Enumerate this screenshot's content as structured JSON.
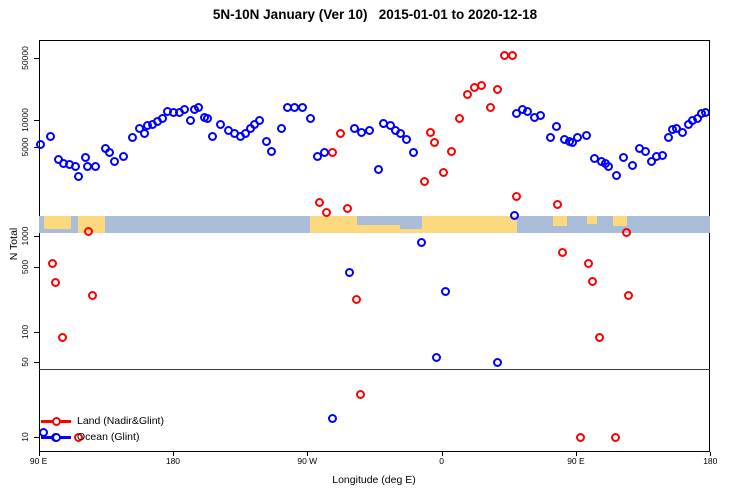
{
  "title": "5N-10N January (Ver 10)   2015-01-01 to 2020-12-18",
  "chart_data": {
    "type": "scatter",
    "title": "5N-10N January (Ver 10)   2015-01-01 to 2020-12-18",
    "xlabel": "Longitude (deg E)",
    "ylabel": "N Total",
    "x_axis": {
      "note_units": "degrees east, axis wraps 90E→180→90W→0→90E→180",
      "range_deg": [
        90,
        540
      ],
      "ticks": [
        {
          "deg": 90,
          "label": "90 E"
        },
        {
          "deg": 180,
          "label": "180"
        },
        {
          "deg": 270,
          "label": "90 W"
        },
        {
          "deg": 360,
          "label": "0"
        },
        {
          "deg": 450,
          "label": "90 E"
        },
        {
          "deg": 540,
          "label": "180"
        }
      ]
    },
    "y_axis": {
      "scale": "log",
      "ticks": [
        10,
        50,
        100,
        500,
        1000,
        5000,
        10000,
        50000
      ],
      "range": [
        10,
        55000
      ]
    },
    "grid": "off",
    "threshold_line_value": 43,
    "map_band": {
      "description": "map strip of 5N-10N latitude band drawn across plot",
      "ocean_color": "#aabdd8",
      "land_color": "#fcd87f",
      "value_top": 1440,
      "value_bottom": 1060,
      "land_patches": [
        {
          "from_deg": 93.6,
          "to_deg": 111.7,
          "align": "top",
          "frac": 0.8
        },
        {
          "from_deg": 116.4,
          "to_deg": 134.5,
          "align": "full",
          "frac": 1
        },
        {
          "from_deg": 271.7,
          "to_deg": 303.2,
          "align": "full",
          "frac": 1
        },
        {
          "from_deg": 303.2,
          "to_deg": 332.0,
          "align": "bottom",
          "frac": 0.45
        },
        {
          "from_deg": 332.0,
          "to_deg": 346.7,
          "align": "bottom",
          "frac": 0.25
        },
        {
          "from_deg": 346.7,
          "to_deg": 410.3,
          "align": "full",
          "frac": 1
        },
        {
          "from_deg": 434.4,
          "to_deg": 443.8,
          "align": "top",
          "frac": 0.6
        },
        {
          "from_deg": 457.2,
          "to_deg": 463.9,
          "align": "top",
          "frac": 0.5
        },
        {
          "from_deg": 474.6,
          "to_deg": 484.0,
          "align": "top",
          "frac": 0.6
        }
      ]
    },
    "legend": {
      "position": "bottom-left",
      "items": [
        {
          "label": "Land (Nadir&Glint)",
          "color": "#ff0000"
        },
        {
          "label": "Ocean (Glint)",
          "color": "#0000ff"
        }
      ]
    },
    "series": [
      {
        "name": "Land (Nadir&Glint)",
        "color": "#ff0000",
        "marker": "open-circle",
        "points": [
          [
            99,
            540
          ],
          [
            101.6,
            340
          ],
          [
            105.7,
            88
          ],
          [
            116.4,
            10
          ],
          [
            123.1,
            1080
          ],
          [
            125.8,
            245
          ],
          [
            278.4,
            1840
          ],
          [
            283.1,
            1535
          ],
          [
            287.1,
            4490
          ],
          [
            292.4,
            7000
          ],
          [
            297.1,
            1650
          ],
          [
            303.2,
            225
          ],
          [
            305.8,
            25
          ],
          [
            348.7,
            2670
          ],
          [
            352.7,
            7200
          ],
          [
            355.4,
            5550
          ],
          [
            361.4,
            3140
          ],
          [
            366.8,
            4570
          ],
          [
            372.1,
            10500
          ],
          [
            377.5,
            19600
          ],
          [
            382.2,
            23500
          ],
          [
            386.9,
            24800
          ],
          [
            392.9,
            13700
          ],
          [
            397.6,
            21800
          ],
          [
            402.3,
            53000
          ],
          [
            407.6,
            54000
          ],
          [
            410.3,
            2040
          ],
          [
            437.8,
            1770
          ],
          [
            441.1,
            690
          ],
          [
            453.1,
            10
          ],
          [
            458.5,
            540
          ],
          [
            461.2,
            345
          ],
          [
            465.9,
            88
          ],
          [
            476.6,
            10
          ],
          [
            484,
            1070
          ],
          [
            485.3,
            245
          ]
        ]
      },
      {
        "name": "Ocean (Glint)",
        "color": "#0000ff",
        "marker": "open-circle",
        "points": [
          [
            91.6,
            5300
          ],
          [
            98.3,
            6600
          ],
          [
            103,
            3960
          ],
          [
            107,
            3690
          ],
          [
            111,
            3630
          ],
          [
            115,
            3500
          ],
          [
            116.4,
            2920
          ],
          [
            121.7,
            4110
          ],
          [
            123,
            3500
          ],
          [
            127.8,
            3500
          ],
          [
            135.1,
            4900
          ],
          [
            137.8,
            4490
          ],
          [
            141.1,
            3820
          ],
          [
            147.2,
            4180
          ],
          [
            153.2,
            6300
          ],
          [
            157.9,
            8100
          ],
          [
            161.2,
            7000
          ],
          [
            163.2,
            8600
          ],
          [
            166.6,
            8800
          ],
          [
            169.9,
            9500
          ],
          [
            173.3,
            10500
          ],
          [
            176.6,
            12600
          ],
          [
            180.7,
            12300
          ],
          [
            184.7,
            12300
          ],
          [
            188,
            13000
          ],
          [
            192,
            10000
          ],
          [
            194.7,
            13300
          ],
          [
            197.4,
            13700
          ],
          [
            201.4,
            10800
          ],
          [
            203.4,
            10500
          ],
          [
            206.8,
            6500
          ],
          [
            212.1,
            8800
          ],
          [
            217.5,
            7700
          ],
          [
            221.5,
            7000
          ],
          [
            225.5,
            6600
          ],
          [
            228.9,
            7000
          ],
          [
            232.2,
            8100
          ],
          [
            234.9,
            8800
          ],
          [
            238.2,
            10000
          ],
          [
            242.9,
            5700
          ],
          [
            246.3,
            4570
          ],
          [
            253,
            8100
          ],
          [
            257,
            13700
          ],
          [
            261.7,
            13700
          ],
          [
            267,
            13700
          ],
          [
            272.4,
            10500
          ],
          [
            277.1,
            4180
          ],
          [
            281.8,
            4490
          ],
          [
            287.1,
            15
          ],
          [
            298.5,
            440
          ],
          [
            301.8,
            8100
          ],
          [
            306.5,
            7200
          ],
          [
            311.9,
            7600
          ],
          [
            317.9,
            3310
          ],
          [
            321.2,
            9250
          ],
          [
            325.9,
            8600
          ],
          [
            329.3,
            7700
          ],
          [
            332.6,
            7000
          ],
          [
            336.6,
            6000
          ],
          [
            341.3,
            4490
          ],
          [
            346.7,
            870
          ],
          [
            356.7,
            55
          ],
          [
            362.7,
            275
          ],
          [
            397.6,
            50
          ],
          [
            409,
            1450
          ],
          [
            410.3,
            11700
          ],
          [
            414.3,
            13000
          ],
          [
            417.7,
            12600
          ],
          [
            422.4,
            10800
          ],
          [
            426.4,
            11100
          ],
          [
            433.1,
            6300
          ],
          [
            437.1,
            8400
          ],
          [
            442.4,
            6000
          ],
          [
            445.8,
            5700
          ],
          [
            447.8,
            5550
          ],
          [
            451.1,
            6300
          ],
          [
            457.2,
            6800
          ],
          [
            462.5,
            4040
          ],
          [
            467.2,
            3820
          ],
          [
            469.9,
            3690
          ],
          [
            471.9,
            3500
          ],
          [
            477.3,
            2980
          ],
          [
            482,
            4110
          ],
          [
            488,
            3560
          ],
          [
            492.7,
            4900
          ],
          [
            496.7,
            4650
          ],
          [
            500.7,
            3820
          ],
          [
            504,
            4180
          ],
          [
            508,
            4260
          ],
          [
            512,
            6300
          ],
          [
            514.7,
            7900
          ],
          [
            517.4,
            8100
          ],
          [
            521.4,
            7200
          ],
          [
            525.4,
            9000
          ],
          [
            528.1,
            10000
          ],
          [
            531.4,
            10500
          ],
          [
            534.1,
            11700
          ],
          [
            536.8,
            12300
          ],
          [
            93.6,
            11
          ],
          [
            101,
            10
          ]
        ]
      }
    ]
  }
}
